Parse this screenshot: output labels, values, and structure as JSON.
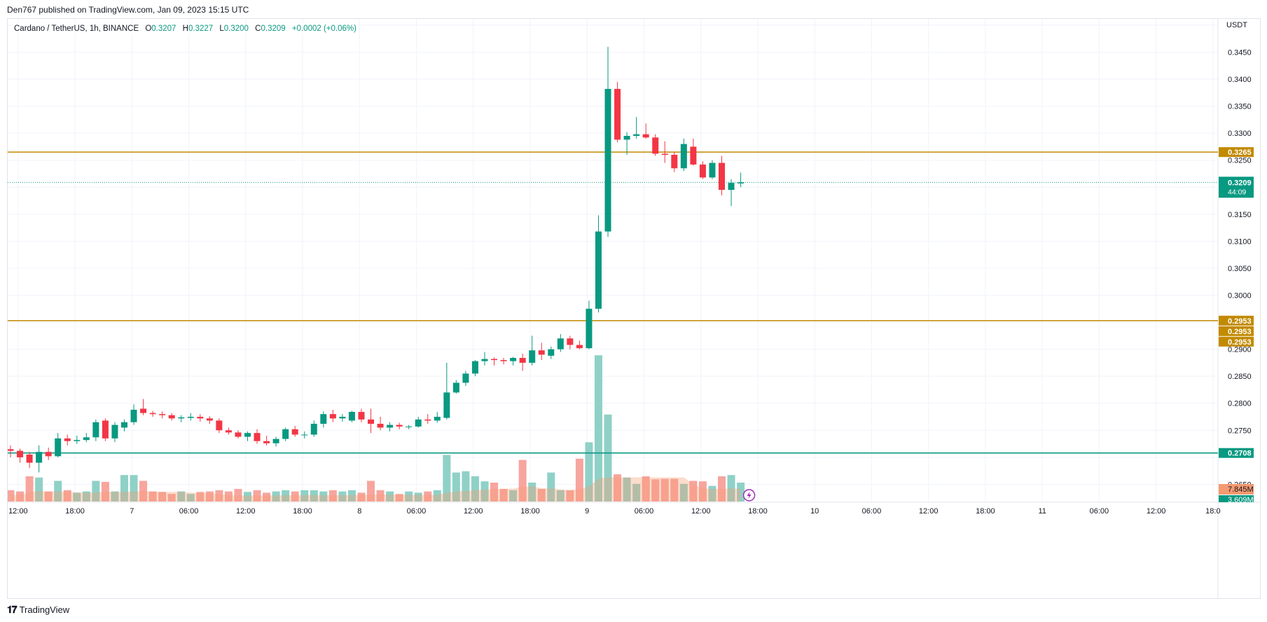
{
  "header": {
    "published": "Den767 published on TradingView.com, Jan 09, 2023 15:15 UTC"
  },
  "legend": {
    "symbol": "Cardano / TetherUS, 1h, BINANCE",
    "open_label": "O",
    "open": "0.3207",
    "high_label": "H",
    "high": "0.3227",
    "low_label": "L",
    "low": "0.3200",
    "close_label": "C",
    "close": "0.3209",
    "change": "+0.0002 (+0.06%)"
  },
  "footer": {
    "brand": "TradingView"
  },
  "colors": {
    "up": "#089981",
    "down": "#f23645",
    "level": "#c28a00",
    "support": "#089981",
    "vol_up": "#8fd1c7",
    "vol_down": "#f7a59e",
    "vol_ma": "#f59a70"
  },
  "chart_data": {
    "type": "candlestick",
    "currency": "USDT",
    "y_ticks": [
      "0.3450",
      "0.3400",
      "0.3350",
      "0.3300",
      "0.3250",
      "0.3150",
      "0.3100",
      "0.3050",
      "0.3000",
      "0.2900",
      "0.2850",
      "0.2800",
      "0.2750",
      "0.2650"
    ],
    "x_ticks": [
      {
        "label": "12:00",
        "i": 0.8
      },
      {
        "label": "18:00",
        "i": 6.8
      },
      {
        "label": "7",
        "i": 12.8
      },
      {
        "label": "06:00",
        "i": 18.8
      },
      {
        "label": "12:00",
        "i": 24.8
      },
      {
        "label": "18:00",
        "i": 30.8
      },
      {
        "label": "8",
        "i": 36.8
      },
      {
        "label": "06:00",
        "i": 42.8
      },
      {
        "label": "12:00",
        "i": 48.8
      },
      {
        "label": "18:00",
        "i": 54.8
      },
      {
        "label": "9",
        "i": 60.8
      },
      {
        "label": "06:00",
        "i": 66.8
      },
      {
        "label": "12:00",
        "i": 72.8
      },
      {
        "label": "18:00",
        "i": 78.8
      },
      {
        "label": "10",
        "i": 84.8
      },
      {
        "label": "06:00",
        "i": 90.8
      },
      {
        "label": "12:00",
        "i": 96.8
      },
      {
        "label": "18:00",
        "i": 102.8
      },
      {
        "label": "11",
        "i": 108.8
      },
      {
        "label": "06:00",
        "i": 114.8
      },
      {
        "label": "12:00",
        "i": 120.8
      },
      {
        "label": "18:0",
        "i": 126.8
      }
    ],
    "horizontal_levels": [
      {
        "price": 0.3265,
        "label": "0.3265",
        "kind": "resistance"
      },
      {
        "price": 0.2953,
        "label": "0.2953",
        "kind": "resistance"
      },
      {
        "price": 0.2708,
        "label": "0.2708",
        "kind": "support"
      }
    ],
    "extra_level_labels": [
      "0.2953",
      "0.2953"
    ],
    "last_price": {
      "price": 0.3209,
      "label": "0.3209",
      "countdown": "44:09"
    },
    "volume_labels": {
      "ma": "7.845M",
      "last": "3.609M"
    },
    "candles": [
      {
        "o": 0.2715,
        "h": 0.2722,
        "l": 0.27,
        "c": 0.2712
      },
      {
        "o": 0.2712,
        "h": 0.2716,
        "l": 0.269,
        "c": 0.27
      },
      {
        "o": 0.2705,
        "h": 0.271,
        "l": 0.268,
        "c": 0.269
      },
      {
        "o": 0.269,
        "h": 0.2722,
        "l": 0.2672,
        "c": 0.271
      },
      {
        "o": 0.271,
        "h": 0.2718,
        "l": 0.2695,
        "c": 0.2702
      },
      {
        "o": 0.2702,
        "h": 0.2745,
        "l": 0.27,
        "c": 0.2735
      },
      {
        "o": 0.2735,
        "h": 0.2742,
        "l": 0.2722,
        "c": 0.273
      },
      {
        "o": 0.273,
        "h": 0.274,
        "l": 0.2725,
        "c": 0.2732
      },
      {
        "o": 0.2732,
        "h": 0.2745,
        "l": 0.2728,
        "c": 0.2737
      },
      {
        "o": 0.2737,
        "h": 0.277,
        "l": 0.273,
        "c": 0.2765
      },
      {
        "o": 0.2768,
        "h": 0.2772,
        "l": 0.273,
        "c": 0.2735
      },
      {
        "o": 0.2735,
        "h": 0.2765,
        "l": 0.2728,
        "c": 0.276
      },
      {
        "o": 0.2755,
        "h": 0.277,
        "l": 0.2748,
        "c": 0.2765
      },
      {
        "o": 0.2765,
        "h": 0.2798,
        "l": 0.276,
        "c": 0.2788
      },
      {
        "o": 0.279,
        "h": 0.2808,
        "l": 0.2778,
        "c": 0.2782
      },
      {
        "o": 0.2782,
        "h": 0.2786,
        "l": 0.2775,
        "c": 0.278
      },
      {
        "o": 0.278,
        "h": 0.2785,
        "l": 0.2772,
        "c": 0.2778
      },
      {
        "o": 0.2778,
        "h": 0.2782,
        "l": 0.2768,
        "c": 0.2772
      },
      {
        "o": 0.2772,
        "h": 0.2778,
        "l": 0.2765,
        "c": 0.2774
      },
      {
        "o": 0.2773,
        "h": 0.2782,
        "l": 0.2768,
        "c": 0.2775
      },
      {
        "o": 0.2775,
        "h": 0.278,
        "l": 0.2766,
        "c": 0.2772
      },
      {
        "o": 0.2772,
        "h": 0.2776,
        "l": 0.2762,
        "c": 0.2768
      },
      {
        "o": 0.2768,
        "h": 0.2772,
        "l": 0.2745,
        "c": 0.275
      },
      {
        "o": 0.275,
        "h": 0.2755,
        "l": 0.2742,
        "c": 0.2746
      },
      {
        "o": 0.2746,
        "h": 0.275,
        "l": 0.2735,
        "c": 0.2738
      },
      {
        "o": 0.2738,
        "h": 0.2748,
        "l": 0.273,
        "c": 0.2745
      },
      {
        "o": 0.2745,
        "h": 0.2752,
        "l": 0.2725,
        "c": 0.273
      },
      {
        "o": 0.273,
        "h": 0.274,
        "l": 0.2722,
        "c": 0.2726
      },
      {
        "o": 0.2726,
        "h": 0.2738,
        "l": 0.272,
        "c": 0.2734
      },
      {
        "o": 0.2734,
        "h": 0.2755,
        "l": 0.273,
        "c": 0.2752
      },
      {
        "o": 0.2752,
        "h": 0.2758,
        "l": 0.2738,
        "c": 0.2742
      },
      {
        "o": 0.2742,
        "h": 0.2748,
        "l": 0.2735,
        "c": 0.2742
      },
      {
        "o": 0.2742,
        "h": 0.2768,
        "l": 0.2738,
        "c": 0.2762
      },
      {
        "o": 0.2762,
        "h": 0.2785,
        "l": 0.2755,
        "c": 0.278
      },
      {
        "o": 0.278,
        "h": 0.2788,
        "l": 0.2765,
        "c": 0.2772
      },
      {
        "o": 0.2772,
        "h": 0.278,
        "l": 0.2766,
        "c": 0.2775
      },
      {
        "o": 0.2768,
        "h": 0.2786,
        "l": 0.2765,
        "c": 0.2784
      },
      {
        "o": 0.2784,
        "h": 0.279,
        "l": 0.2765,
        "c": 0.277
      },
      {
        "o": 0.277,
        "h": 0.279,
        "l": 0.2745,
        "c": 0.2762
      },
      {
        "o": 0.2762,
        "h": 0.2775,
        "l": 0.275,
        "c": 0.2755
      },
      {
        "o": 0.2755,
        "h": 0.2765,
        "l": 0.2748,
        "c": 0.276
      },
      {
        "o": 0.276,
        "h": 0.2764,
        "l": 0.2752,
        "c": 0.2757
      },
      {
        "o": 0.2757,
        "h": 0.276,
        "l": 0.2752,
        "c": 0.2757
      },
      {
        "o": 0.2757,
        "h": 0.2775,
        "l": 0.2755,
        "c": 0.277
      },
      {
        "o": 0.277,
        "h": 0.278,
        "l": 0.2762,
        "c": 0.2768
      },
      {
        "o": 0.2768,
        "h": 0.2784,
        "l": 0.2764,
        "c": 0.2775
      },
      {
        "o": 0.2773,
        "h": 0.2875,
        "l": 0.277,
        "c": 0.282
      },
      {
        "o": 0.282,
        "h": 0.2843,
        "l": 0.2818,
        "c": 0.2838
      },
      {
        "o": 0.2838,
        "h": 0.286,
        "l": 0.2832,
        "c": 0.2855
      },
      {
        "o": 0.2855,
        "h": 0.288,
        "l": 0.285,
        "c": 0.2878
      },
      {
        "o": 0.2878,
        "h": 0.2895,
        "l": 0.287,
        "c": 0.2882
      },
      {
        "o": 0.2882,
        "h": 0.2885,
        "l": 0.287,
        "c": 0.288
      },
      {
        "o": 0.288,
        "h": 0.2884,
        "l": 0.2872,
        "c": 0.2878
      },
      {
        "o": 0.2878,
        "h": 0.2886,
        "l": 0.287,
        "c": 0.2884
      },
      {
        "o": 0.2884,
        "h": 0.2892,
        "l": 0.286,
        "c": 0.2875
      },
      {
        "o": 0.2875,
        "h": 0.2925,
        "l": 0.287,
        "c": 0.2898
      },
      {
        "o": 0.2898,
        "h": 0.2912,
        "l": 0.288,
        "c": 0.289
      },
      {
        "o": 0.2888,
        "h": 0.2905,
        "l": 0.2882,
        "c": 0.29
      },
      {
        "o": 0.29,
        "h": 0.2928,
        "l": 0.2895,
        "c": 0.292
      },
      {
        "o": 0.292,
        "h": 0.2925,
        "l": 0.29,
        "c": 0.2908
      },
      {
        "o": 0.2908,
        "h": 0.2916,
        "l": 0.29,
        "c": 0.2902
      },
      {
        "o": 0.2902,
        "h": 0.299,
        "l": 0.29,
        "c": 0.2975
      },
      {
        "o": 0.2975,
        "h": 0.3148,
        "l": 0.2968,
        "c": 0.3118
      },
      {
        "o": 0.3118,
        "h": 0.346,
        "l": 0.3108,
        "c": 0.3382
      },
      {
        "o": 0.3382,
        "h": 0.3395,
        "l": 0.3283,
        "c": 0.3288
      },
      {
        "o": 0.3288,
        "h": 0.3302,
        "l": 0.326,
        "c": 0.3295
      },
      {
        "o": 0.3295,
        "h": 0.333,
        "l": 0.329,
        "c": 0.3298
      },
      {
        "o": 0.3298,
        "h": 0.3318,
        "l": 0.329,
        "c": 0.3292
      },
      {
        "o": 0.3292,
        "h": 0.3298,
        "l": 0.3258,
        "c": 0.3262
      },
      {
        "o": 0.3262,
        "h": 0.3285,
        "l": 0.3245,
        "c": 0.326
      },
      {
        "o": 0.326,
        "h": 0.3265,
        "l": 0.3228,
        "c": 0.3235
      },
      {
        "o": 0.3235,
        "h": 0.329,
        "l": 0.323,
        "c": 0.328
      },
      {
        "o": 0.3275,
        "h": 0.329,
        "l": 0.324,
        "c": 0.3242
      },
      {
        "o": 0.3242,
        "h": 0.3248,
        "l": 0.3215,
        "c": 0.3218
      },
      {
        "o": 0.3218,
        "h": 0.325,
        "l": 0.3215,
        "c": 0.3245
      },
      {
        "o": 0.3245,
        "h": 0.3258,
        "l": 0.3185,
        "c": 0.3195
      },
      {
        "o": 0.3195,
        "h": 0.3215,
        "l": 0.3165,
        "c": 0.3208
      },
      {
        "o": 0.3207,
        "h": 0.3227,
        "l": 0.32,
        "c": 0.3209
      }
    ],
    "volume_relative": [
      0.45,
      0.4,
      1.0,
      0.95,
      0.4,
      0.82,
      0.45,
      0.35,
      0.4,
      0.82,
      0.78,
      0.4,
      1.05,
      1.05,
      0.82,
      0.4,
      0.38,
      0.3,
      0.4,
      0.3,
      0.38,
      0.4,
      0.45,
      0.4,
      0.5,
      0.38,
      0.45,
      0.35,
      0.4,
      0.45,
      0.4,
      0.45,
      0.45,
      0.4,
      0.45,
      0.4,
      0.45,
      0.35,
      0.82,
      0.45,
      0.4,
      0.3,
      0.4,
      0.35,
      0.4,
      0.45,
      1.85,
      1.15,
      1.2,
      1.0,
      0.8,
      0.75,
      0.5,
      0.45,
      1.65,
      0.75,
      0.5,
      1.15,
      0.45,
      0.45,
      1.7,
      2.35,
      5.8,
      3.45,
      1.08,
      0.95,
      0.7,
      1.0,
      0.88,
      0.9,
      0.9,
      0.7,
      0.82,
      0.8,
      0.62,
      1.0,
      1.05,
      0.75
    ]
  }
}
